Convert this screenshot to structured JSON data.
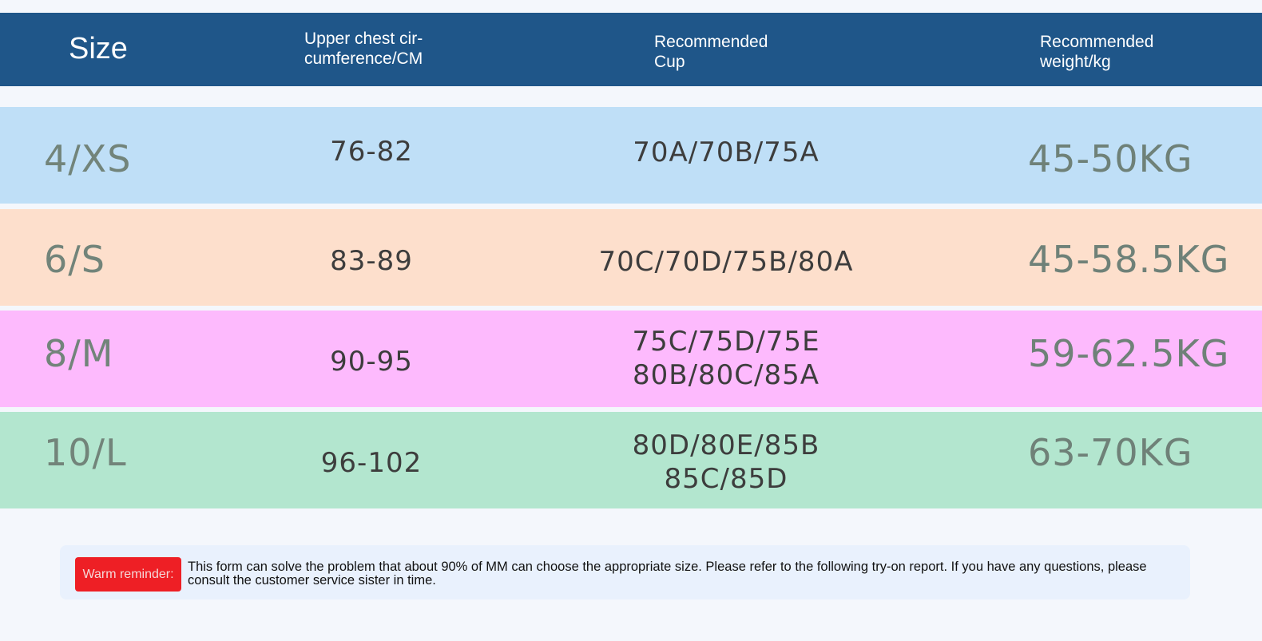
{
  "header": {
    "size": "Size",
    "chest": "Upper chest cir-cumference/CM",
    "cup": "Recommended Cup",
    "weight": "Recommended weight/kg"
  },
  "colors": {
    "header_bg": "#1f5689",
    "row_xs": "#bfdff7",
    "row_s": "#fddfcc",
    "row_m": "#fdbafd",
    "row_l": "#b3e6cf",
    "reminder_badge": "#ee1f25"
  },
  "rows": [
    {
      "size": "4/XS",
      "chest": "76-82",
      "cup": [
        "70A/70B/75A"
      ],
      "weight": "45-50KG"
    },
    {
      "size": "6/S",
      "chest": "83-89",
      "cup": [
        "70C/70D/75B/80A"
      ],
      "weight": "45-58.5KG"
    },
    {
      "size": "8/M",
      "chest": "90-95",
      "cup": [
        "75C/75D/75E",
        "80B/80C/85A"
      ],
      "weight": "59-62.5KG"
    },
    {
      "size": "10/L",
      "chest": "96-102",
      "cup": [
        "80D/80E/85B",
        "85C/85D"
      ],
      "weight": "63-70KG"
    }
  ],
  "reminder": {
    "label": "Warm reminder:",
    "text": "This form can solve the problem that about 90% of MM can choose the appropriate size. Please refer to the following try-on report. If you have any questions, please consult the customer service sister in time."
  }
}
